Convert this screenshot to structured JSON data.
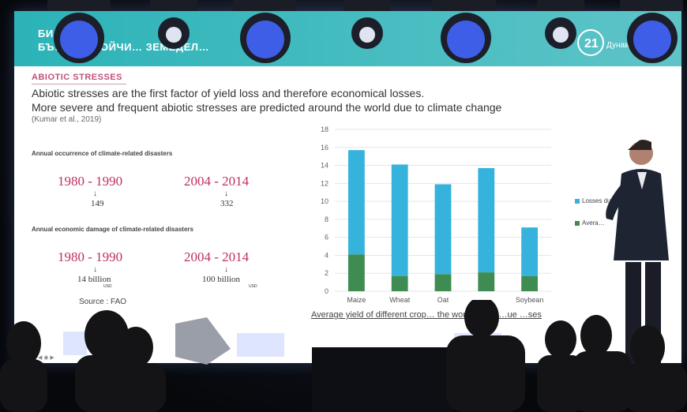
{
  "banner": {
    "line1": "БИ…ТОРИ –",
    "line2": "БЪ… А УСТОЙЧИ… ЗЕМЕДЕЛ…"
  },
  "logo": {
    "text": "21",
    "subtext": "Дунав"
  },
  "slide": {
    "section_title": "ABIOTIC STRESSES",
    "headline": "Abiotic stresses are the first factor of yield loss and therefore economical losses.",
    "headline2": "More severe and frequent abiotic stresses are predicted around the world due to climate change",
    "citation": "(Kumar et al., 2019)",
    "occurrence_label": "Annual occurrence of climate-related disasters",
    "period1": "1980 - 1990",
    "period2": "2004 - 2014",
    "occ_val1": "149",
    "occ_val2": "332",
    "damage_label": "Annual economic damage of climate-related disasters",
    "period3": "1980 - 1990",
    "period4": "2004 - 2014",
    "dmg_val1": "14 billion",
    "dmg_val2": "100 billion",
    "usd": "USD",
    "arrow": "↓",
    "source": "Source : FAO",
    "chart_title": "Average yield of different crop… the world and lo…ue …ses"
  },
  "chart_data": {
    "type": "bar",
    "categories": [
      "Maize",
      "Wheat",
      "Oat",
      "",
      "Soybean"
    ],
    "series": [
      {
        "name": "Losses due … s…",
        "values": [
          11.6,
          12.4,
          10.0,
          11.6,
          5.4
        ],
        "color": "#36b3dc"
      },
      {
        "name": "Avera…",
        "values": [
          4.1,
          1.7,
          1.9,
          2.1,
          1.7
        ],
        "color": "#3f8c52"
      }
    ],
    "stacked": true,
    "ylim": [
      0,
      18
    ],
    "yticks": [
      0,
      2,
      4,
      6,
      8,
      10,
      12,
      14,
      16,
      18
    ],
    "grid": true,
    "legend": "right"
  },
  "colors": {
    "accent": "#c02f5e",
    "banner": "#2bb3b8"
  }
}
